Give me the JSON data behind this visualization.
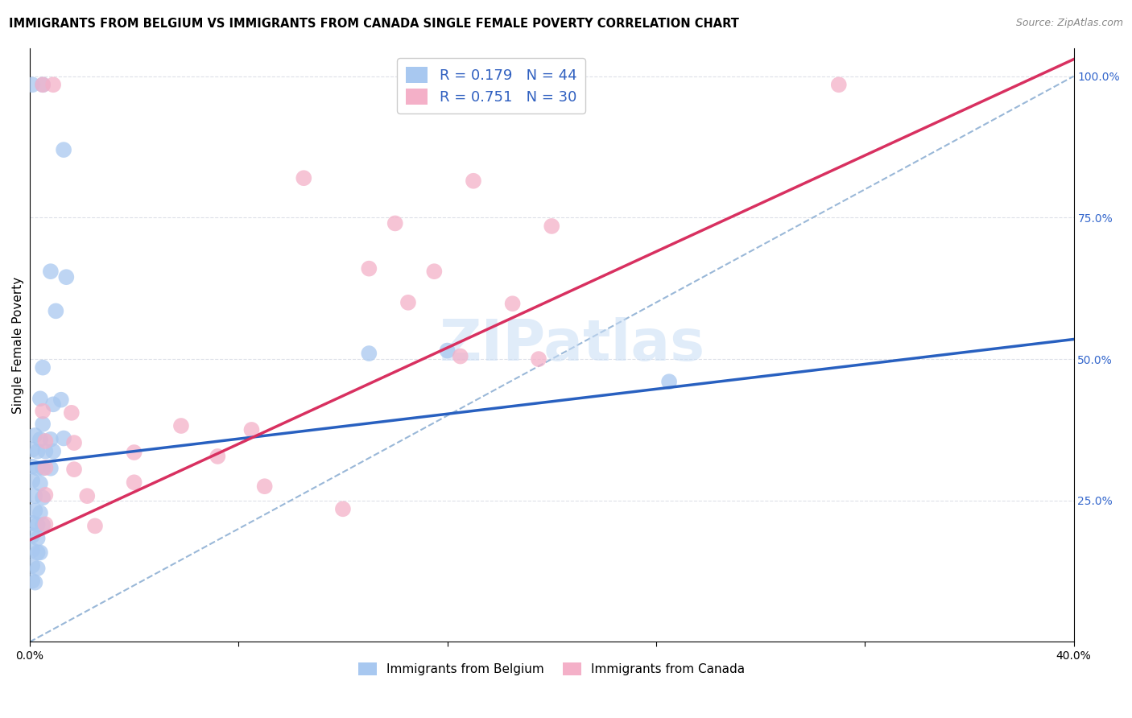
{
  "title": "IMMIGRANTS FROM BELGIUM VS IMMIGRANTS FROM CANADA SINGLE FEMALE POVERTY CORRELATION CHART",
  "source": "Source: ZipAtlas.com",
  "ylabel": "Single Female Poverty",
  "xlim": [
    0.0,
    0.4
  ],
  "ylim": [
    0.0,
    1.05
  ],
  "x_ticks": [
    0.0,
    0.08,
    0.16,
    0.24,
    0.32,
    0.4
  ],
  "x_tick_labels": [
    "0.0%",
    "",
    "",
    "",
    "",
    "40.0%"
  ],
  "y_ticks_right": [
    0.25,
    0.5,
    0.75,
    1.0
  ],
  "y_tick_labels_right": [
    "25.0%",
    "50.0%",
    "75.0%",
    "100.0%"
  ],
  "R_belgium": 0.179,
  "N_belgium": 44,
  "R_canada": 0.751,
  "N_canada": 30,
  "color_belgium": "#a8c8f0",
  "color_canada": "#f4b0c8",
  "line_color_belgium": "#2860c0",
  "line_color_canada": "#d83060",
  "diagonal_color": "#9ab8d8",
  "watermark_text": "ZIPatlas",
  "belgium_points": [
    [
      0.001,
      0.985
    ],
    [
      0.005,
      0.985
    ],
    [
      0.013,
      0.87
    ],
    [
      0.008,
      0.655
    ],
    [
      0.014,
      0.645
    ],
    [
      0.01,
      0.585
    ],
    [
      0.005,
      0.485
    ],
    [
      0.004,
      0.43
    ],
    [
      0.009,
      0.42
    ],
    [
      0.012,
      0.428
    ],
    [
      0.005,
      0.385
    ],
    [
      0.002,
      0.365
    ],
    [
      0.004,
      0.358
    ],
    [
      0.008,
      0.358
    ],
    [
      0.013,
      0.36
    ],
    [
      0.001,
      0.34
    ],
    [
      0.003,
      0.337
    ],
    [
      0.006,
      0.337
    ],
    [
      0.009,
      0.337
    ],
    [
      0.001,
      0.31
    ],
    [
      0.003,
      0.307
    ],
    [
      0.005,
      0.307
    ],
    [
      0.008,
      0.307
    ],
    [
      0.001,
      0.285
    ],
    [
      0.004,
      0.28
    ],
    [
      0.002,
      0.258
    ],
    [
      0.005,
      0.255
    ],
    [
      0.002,
      0.232
    ],
    [
      0.004,
      0.228
    ],
    [
      0.001,
      0.21
    ],
    [
      0.003,
      0.207
    ],
    [
      0.005,
      0.207
    ],
    [
      0.001,
      0.188
    ],
    [
      0.003,
      0.183
    ],
    [
      0.001,
      0.162
    ],
    [
      0.003,
      0.158
    ],
    [
      0.004,
      0.158
    ],
    [
      0.001,
      0.135
    ],
    [
      0.003,
      0.13
    ],
    [
      0.001,
      0.108
    ],
    [
      0.002,
      0.105
    ],
    [
      0.13,
      0.51
    ],
    [
      0.16,
      0.515
    ],
    [
      0.245,
      0.46
    ]
  ],
  "canada_points": [
    [
      0.005,
      0.985
    ],
    [
      0.009,
      0.985
    ],
    [
      0.31,
      0.985
    ],
    [
      0.105,
      0.82
    ],
    [
      0.17,
      0.815
    ],
    [
      0.14,
      0.74
    ],
    [
      0.2,
      0.735
    ],
    [
      0.13,
      0.66
    ],
    [
      0.155,
      0.655
    ],
    [
      0.145,
      0.6
    ],
    [
      0.185,
      0.598
    ],
    [
      0.165,
      0.505
    ],
    [
      0.195,
      0.5
    ],
    [
      0.005,
      0.408
    ],
    [
      0.016,
      0.405
    ],
    [
      0.058,
      0.382
    ],
    [
      0.085,
      0.375
    ],
    [
      0.006,
      0.355
    ],
    [
      0.017,
      0.352
    ],
    [
      0.04,
      0.335
    ],
    [
      0.072,
      0.328
    ],
    [
      0.006,
      0.308
    ],
    [
      0.017,
      0.305
    ],
    [
      0.04,
      0.282
    ],
    [
      0.09,
      0.275
    ],
    [
      0.006,
      0.26
    ],
    [
      0.022,
      0.258
    ],
    [
      0.12,
      0.235
    ],
    [
      0.006,
      0.208
    ],
    [
      0.025,
      0.205
    ]
  ],
  "belgium_line": [
    0.0,
    0.315,
    0.4,
    0.535
  ],
  "canada_line": [
    0.0,
    0.18,
    0.4,
    1.03
  ],
  "diagonal_line": [
    0.0,
    0.0,
    0.4,
    1.0
  ],
  "title_fontsize": 10.5,
  "axis_label_fontsize": 11,
  "tick_fontsize": 10,
  "legend_fontsize": 13,
  "watermark_fontsize": 52,
  "source_fontsize": 9,
  "background_color": "#ffffff",
  "grid_color": "#dde0e8"
}
